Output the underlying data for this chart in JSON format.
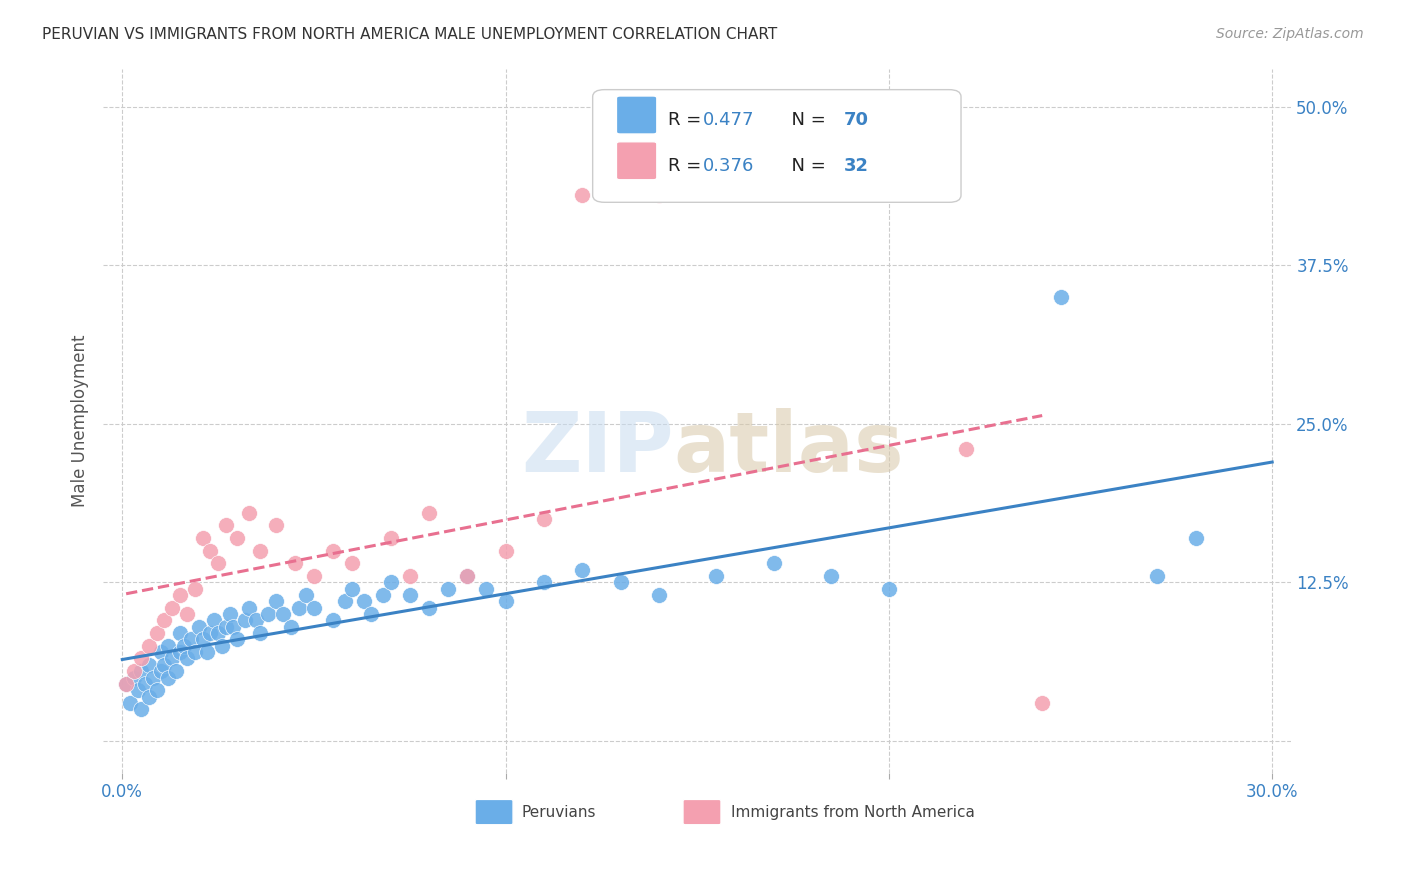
{
  "title": "PERUVIAN VS IMMIGRANTS FROM NORTH AMERICA MALE UNEMPLOYMENT CORRELATION CHART",
  "source": "Source: ZipAtlas.com",
  "ylabel": "Male Unemployment",
  "xlim": [
    0.0,
    0.3
  ],
  "ylim": [
    0.0,
    0.52
  ],
  "legend_r1": "R = 0.477",
  "legend_n1": "N = 70",
  "legend_r2": "R = 0.376",
  "legend_n2": "N = 32",
  "blue_color": "#6aaee8",
  "pink_color": "#f4a0b0",
  "blue_line_color": "#3b82c4",
  "pink_line_color": "#e87090",
  "peruvians_x": [
    0.001,
    0.002,
    0.003,
    0.004,
    0.005,
    0.005,
    0.006,
    0.007,
    0.007,
    0.008,
    0.009,
    0.01,
    0.01,
    0.011,
    0.012,
    0.012,
    0.013,
    0.014,
    0.015,
    0.015,
    0.016,
    0.017,
    0.018,
    0.019,
    0.02,
    0.021,
    0.022,
    0.023,
    0.024,
    0.025,
    0.026,
    0.027,
    0.028,
    0.029,
    0.03,
    0.032,
    0.033,
    0.035,
    0.036,
    0.038,
    0.04,
    0.042,
    0.044,
    0.046,
    0.048,
    0.05,
    0.055,
    0.058,
    0.06,
    0.063,
    0.065,
    0.068,
    0.07,
    0.075,
    0.08,
    0.085,
    0.09,
    0.095,
    0.1,
    0.11,
    0.12,
    0.13,
    0.14,
    0.155,
    0.17,
    0.185,
    0.2,
    0.245,
    0.27,
    0.28
  ],
  "peruvians_y": [
    0.045,
    0.03,
    0.05,
    0.04,
    0.025,
    0.055,
    0.045,
    0.035,
    0.06,
    0.05,
    0.04,
    0.055,
    0.07,
    0.06,
    0.05,
    0.075,
    0.065,
    0.055,
    0.07,
    0.085,
    0.075,
    0.065,
    0.08,
    0.07,
    0.09,
    0.08,
    0.07,
    0.085,
    0.095,
    0.085,
    0.075,
    0.09,
    0.1,
    0.09,
    0.08,
    0.095,
    0.105,
    0.095,
    0.085,
    0.1,
    0.11,
    0.1,
    0.09,
    0.105,
    0.115,
    0.105,
    0.095,
    0.11,
    0.12,
    0.11,
    0.1,
    0.115,
    0.125,
    0.115,
    0.105,
    0.12,
    0.13,
    0.12,
    0.11,
    0.125,
    0.135,
    0.125,
    0.115,
    0.13,
    0.14,
    0.13,
    0.12,
    0.35,
    0.13,
    0.16
  ],
  "immigrants_x": [
    0.001,
    0.003,
    0.005,
    0.007,
    0.009,
    0.011,
    0.013,
    0.015,
    0.017,
    0.019,
    0.021,
    0.023,
    0.025,
    0.027,
    0.03,
    0.033,
    0.036,
    0.04,
    0.045,
    0.05,
    0.055,
    0.06,
    0.07,
    0.075,
    0.08,
    0.09,
    0.1,
    0.11,
    0.12,
    0.14,
    0.22,
    0.24
  ],
  "immigrants_y": [
    0.045,
    0.055,
    0.065,
    0.075,
    0.085,
    0.095,
    0.105,
    0.115,
    0.1,
    0.12,
    0.16,
    0.15,
    0.14,
    0.17,
    0.16,
    0.18,
    0.15,
    0.17,
    0.14,
    0.13,
    0.15,
    0.14,
    0.16,
    0.13,
    0.18,
    0.13,
    0.15,
    0.175,
    0.43,
    0.43,
    0.23,
    0.03
  ]
}
